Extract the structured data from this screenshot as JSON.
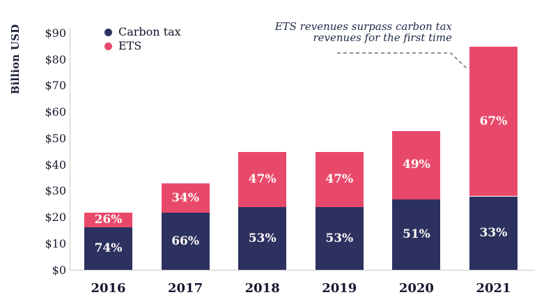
{
  "chart_data": {
    "type": "bar",
    "stacked": true,
    "ylabel": "Billion USD",
    "categories": [
      "2016",
      "2017",
      "2018",
      "2019",
      "2020",
      "2021"
    ],
    "series": [
      {
        "name": "Carbon tax",
        "color": "#2d3160",
        "values": [
          16.3,
          21.8,
          23.9,
          23.9,
          27.0,
          28.1
        ],
        "pct_labels": [
          "74%",
          "66%",
          "53%",
          "53%",
          "51%",
          "33%"
        ]
      },
      {
        "name": "ETS",
        "color": "#e8496b",
        "values": [
          5.7,
          11.2,
          21.1,
          21.1,
          26.0,
          56.9
        ],
        "pct_labels": [
          "26%",
          "34%",
          "47%",
          "47%",
          "49%",
          "67%"
        ]
      }
    ],
    "totals_billion_usd": [
      22,
      33,
      45,
      45,
      53,
      85
    ],
    "ylim": [
      0,
      90
    ],
    "ytick_step": 10,
    "ytick_labels": [
      "$0",
      "$10",
      "$20",
      "$30",
      "$40",
      "$50",
      "$60",
      "$70",
      "$80",
      "$90"
    ],
    "grid": "none",
    "legend_position": "top-left inside plot",
    "annotation": {
      "lines": [
        "ETS revenues surpass carbon tax",
        "revenues for the first time"
      ],
      "style": "italic text with gray dashed leader line",
      "target": "2021 ETS segment"
    },
    "label_text_color": "#ffffff",
    "axis_line_color": "#c8c8c8"
  }
}
